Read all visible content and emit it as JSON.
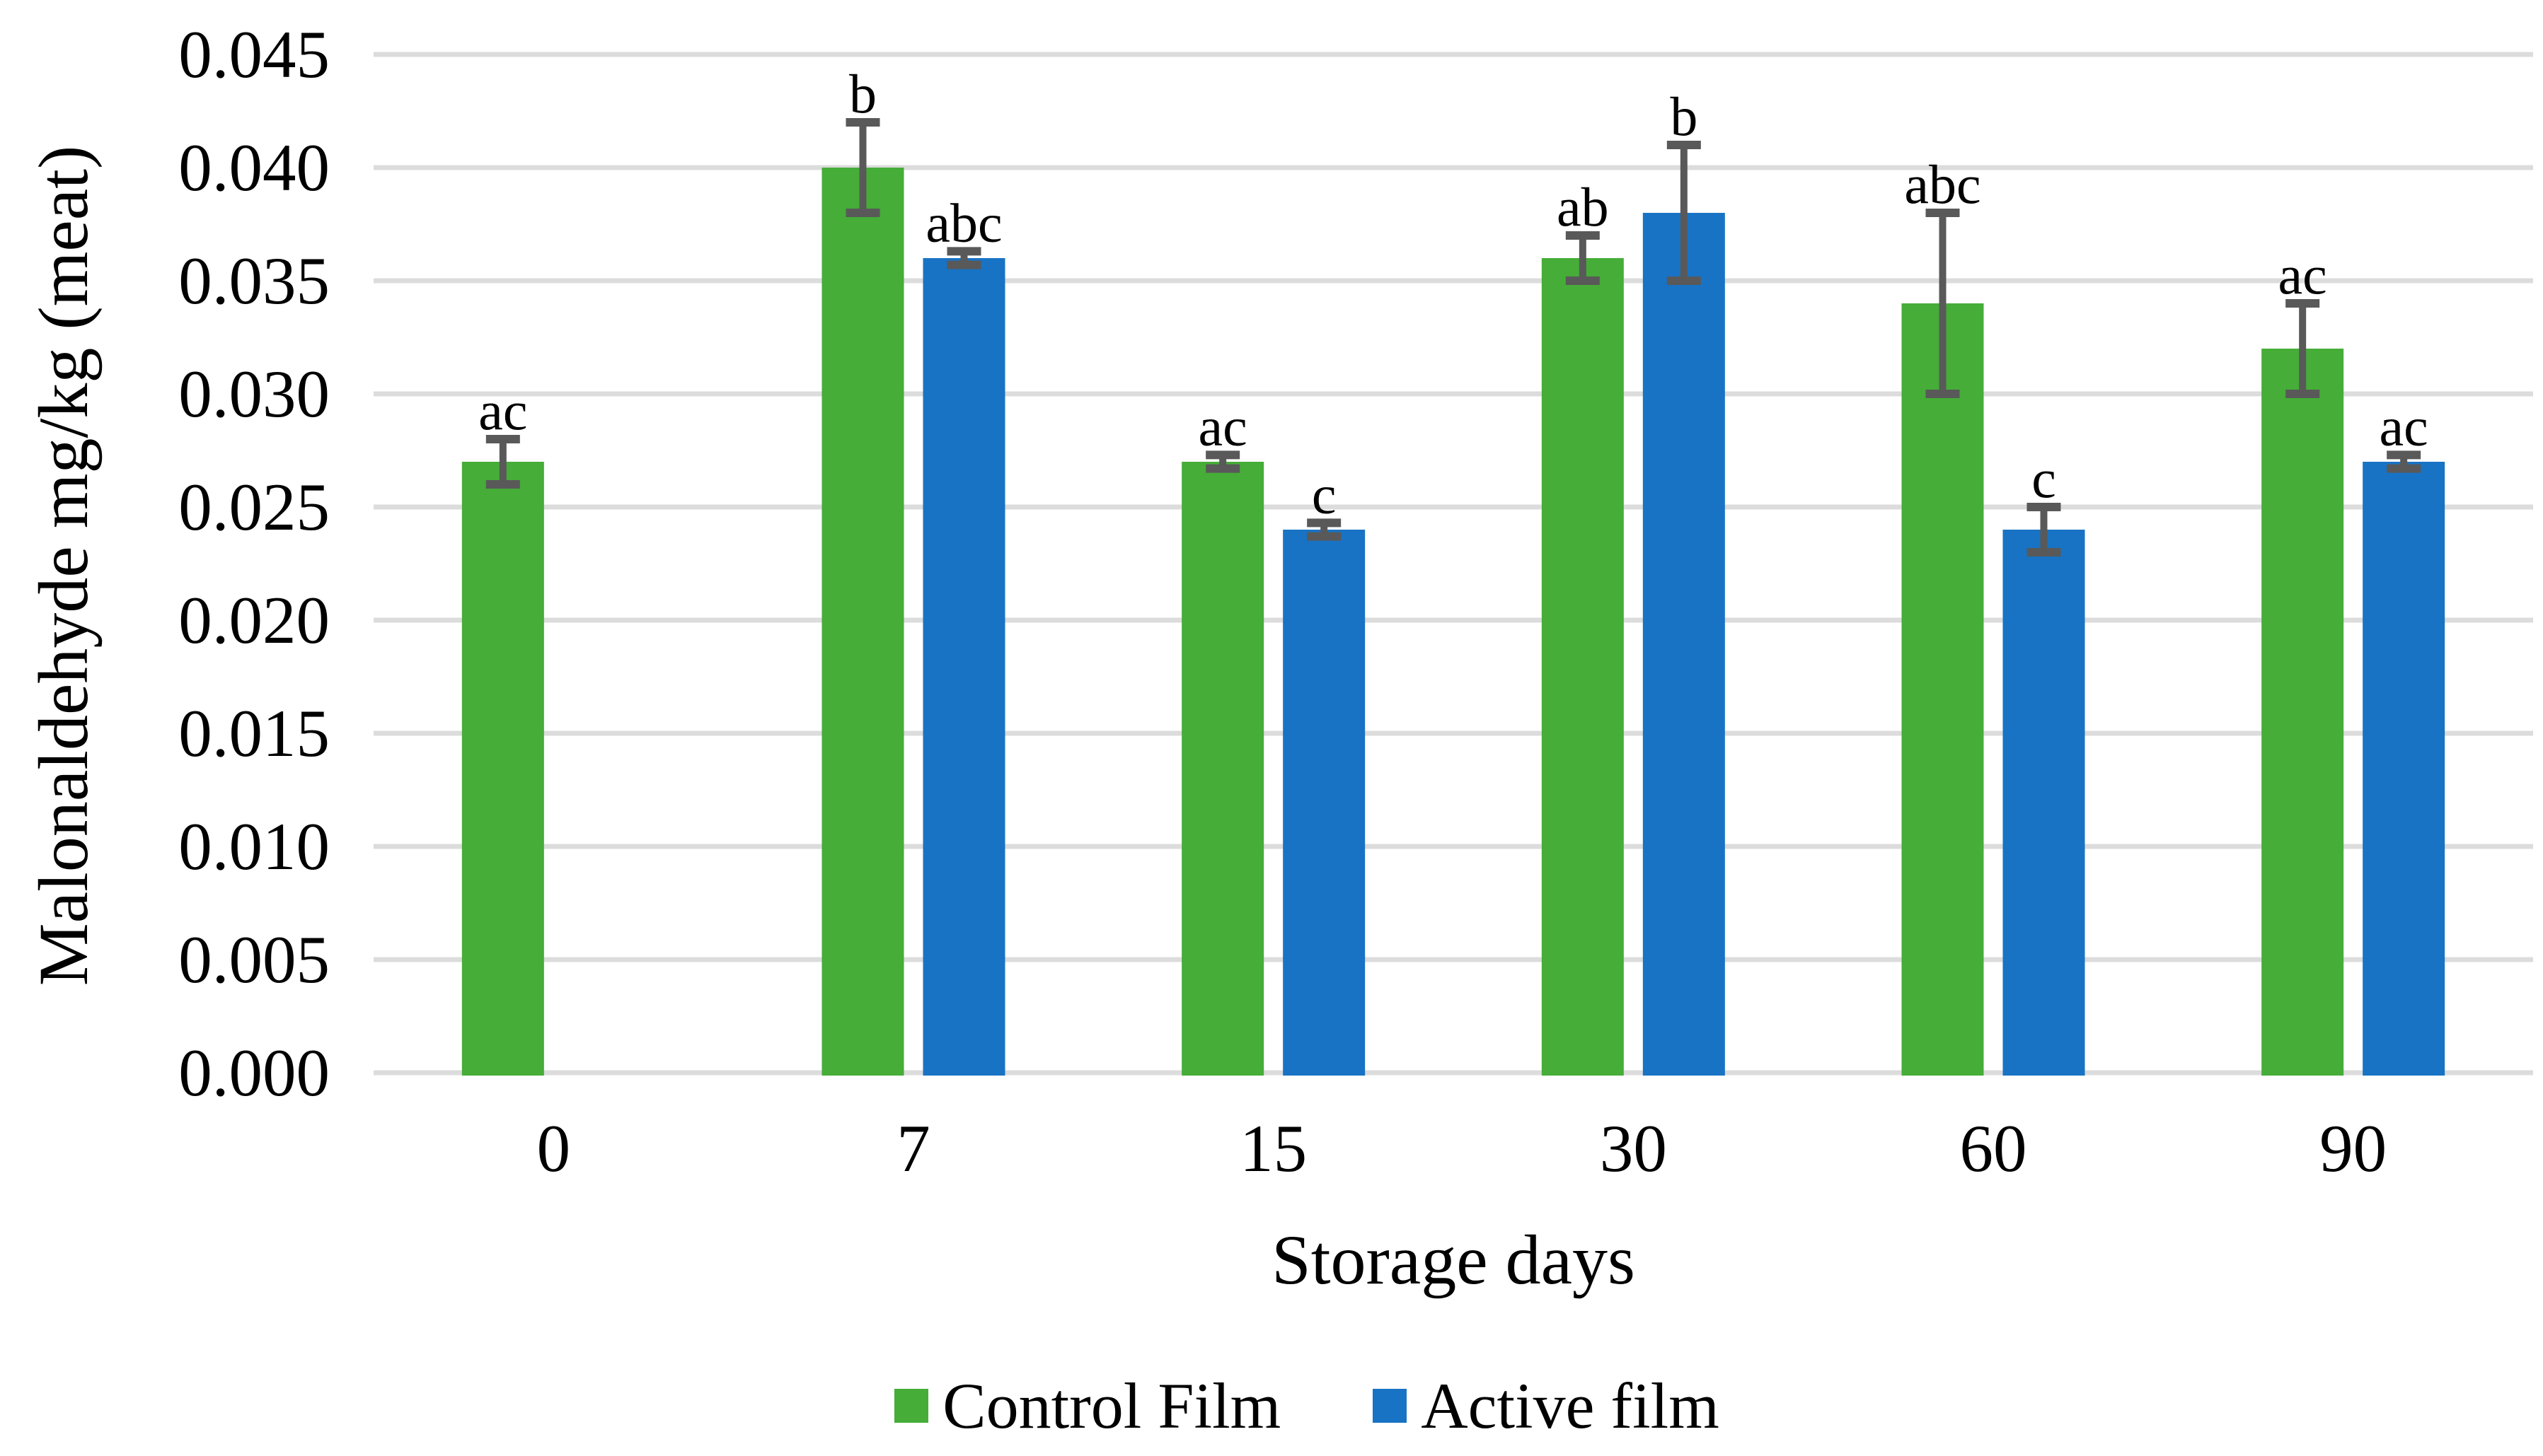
{
  "chart_data": {
    "type": "bar",
    "title": "",
    "ylabel": "Malonaldehyde mg/kg (meat)",
    "xlabel": "Storage days",
    "categories": [
      "0",
      "7",
      "15",
      "30",
      "60",
      "90"
    ],
    "series": [
      {
        "name": "Control Film",
        "color": "#45ad38",
        "values": [
          0.027,
          0.04,
          0.027,
          0.036,
          0.034,
          0.032
        ],
        "errors": [
          0.001,
          0.002,
          0.0003,
          0.001,
          0.004,
          0.002
        ],
        "sig_letters": [
          "ac",
          "b",
          "ac",
          "ab",
          "abc",
          "ac"
        ]
      },
      {
        "name": "Active film",
        "color": "#1873c4",
        "values": [
          null,
          0.036,
          0.024,
          0.038,
          0.024,
          0.027
        ],
        "errors": [
          null,
          0.0003,
          0.0003,
          0.003,
          0.001,
          0.0003
        ],
        "sig_letters": [
          null,
          "abc",
          "c",
          "b",
          "c",
          "ac"
        ]
      }
    ],
    "ylim": [
      0,
      0.045
    ],
    "ytick_step": 0.005,
    "ytick_labels": [
      "0.000",
      "0.005",
      "0.010",
      "0.015",
      "0.020",
      "0.025",
      "0.030",
      "0.035",
      "0.040",
      "0.045"
    ],
    "grid": "horizontal",
    "legend_position": "bottom",
    "colors": {
      "gridline": "#dcdcdc",
      "error_bar": "#595959",
      "text": "#000000",
      "background": "#ffffff"
    }
  }
}
